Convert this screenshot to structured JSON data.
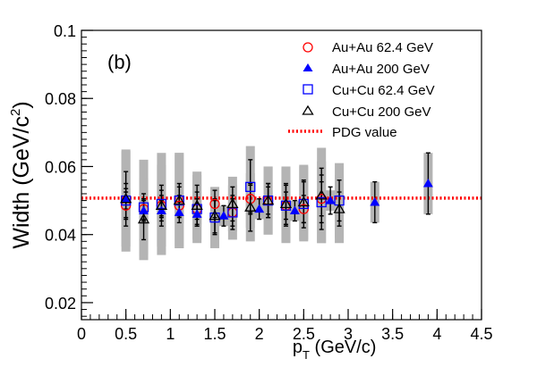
{
  "chart_data": {
    "type": "scatter",
    "panel_label": "(b)",
    "xlabel": {
      "main": "p",
      "sub": "T",
      "rest": " (GeV/c)"
    },
    "ylabel": {
      "main": "Width (GeV/c",
      "sup": "2",
      "rest": ")"
    },
    "xlim": [
      0,
      4.5
    ],
    "ylim": [
      0.015,
      0.1
    ],
    "x_ticks": [
      0,
      0.5,
      1,
      1.5,
      2,
      2.5,
      3,
      3.5,
      4,
      4.5
    ],
    "x_tick_labels": [
      "0",
      "0.5",
      "1",
      "1.5",
      "2",
      "2.5",
      "3",
      "3.5",
      "4",
      "4.5"
    ],
    "y_ticks": [
      0.02,
      0.04,
      0.06,
      0.08,
      0.1
    ],
    "y_tick_labels": [
      "0.02",
      "0.04",
      "0.06",
      "0.08",
      "0.1"
    ],
    "reference_line": {
      "name": "PDG value",
      "y": 0.0507,
      "color": "#ff0000",
      "style": "dotted"
    },
    "legend_position": "top-right",
    "series": [
      {
        "name": "Au+Au 62.4 GeV",
        "marker": "open-circle",
        "color": "#ff0000",
        "points": [
          {
            "x": 0.5,
            "y": 0.0485,
            "err": 0.004,
            "sys": 0.003
          },
          {
            "x": 0.7,
            "y": 0.0475,
            "err": 0.003,
            "sys": 0.003
          },
          {
            "x": 0.9,
            "y": 0.0485,
            "err": 0.003,
            "sys": 0.003
          },
          {
            "x": 1.1,
            "y": 0.0485,
            "err": 0.003,
            "sys": 0.003
          },
          {
            "x": 1.3,
            "y": 0.0475,
            "err": 0.003,
            "sys": 0.003
          },
          {
            "x": 1.5,
            "y": 0.049,
            "err": 0.004,
            "sys": 0.003
          },
          {
            "x": 1.7,
            "y": 0.0465,
            "err": 0.004,
            "sys": 0.003
          },
          {
            "x": 1.9,
            "y": 0.0505,
            "err": 0.004,
            "sys": 0.003
          },
          {
            "x": 2.1,
            "y": 0.05,
            "err": 0.004,
            "sys": 0.003
          },
          {
            "x": 2.3,
            "y": 0.0485,
            "err": 0.004,
            "sys": 0.003
          },
          {
            "x": 2.5,
            "y": 0.0475,
            "err": 0.004,
            "sys": 0.003
          },
          {
            "x": 2.7,
            "y": 0.0505,
            "err": 0.005,
            "sys": 0.003
          }
        ]
      },
      {
        "name": "Au+Au 200 GeV",
        "marker": "filled-triangle",
        "color": "#0000ff",
        "points": [
          {
            "x": 0.5,
            "y": 0.0505,
            "err": 0.003,
            "sys": 0.003
          },
          {
            "x": 0.7,
            "y": 0.047,
            "err": 0.003,
            "sys": 0.003
          },
          {
            "x": 0.9,
            "y": 0.047,
            "err": 0.003,
            "sys": 0.003
          },
          {
            "x": 1.1,
            "y": 0.0465,
            "err": 0.003,
            "sys": 0.003
          },
          {
            "x": 1.3,
            "y": 0.046,
            "err": 0.003,
            "sys": 0.003
          },
          {
            "x": 1.6,
            "y": 0.0455,
            "err": 0.003,
            "sys": 0.003
          },
          {
            "x": 2.0,
            "y": 0.0475,
            "err": 0.003,
            "sys": 0.003
          },
          {
            "x": 2.4,
            "y": 0.047,
            "err": 0.003,
            "sys": 0.003
          },
          {
            "x": 2.8,
            "y": 0.05,
            "err": 0.004,
            "sys": 0.003
          },
          {
            "x": 3.3,
            "y": 0.0495,
            "err": 0.006,
            "sys": 0.006
          },
          {
            "x": 3.9,
            "y": 0.055,
            "err": 0.009,
            "sys": 0.009
          }
        ]
      },
      {
        "name": "Cu+Cu 62.4 GeV",
        "marker": "open-square",
        "color": "#0000ff",
        "points": [
          {
            "x": 0.5,
            "y": 0.05,
            "err": 0.005,
            "sys": 0.015
          },
          {
            "x": 0.7,
            "y": 0.048,
            "err": 0.004,
            "sys": 0.014
          },
          {
            "x": 0.9,
            "y": 0.049,
            "err": 0.004,
            "sys": 0.015
          },
          {
            "x": 1.1,
            "y": 0.05,
            "err": 0.004,
            "sys": 0.014
          },
          {
            "x": 1.3,
            "y": 0.0475,
            "err": 0.005,
            "sys": 0.01
          },
          {
            "x": 1.5,
            "y": 0.045,
            "err": 0.005,
            "sys": 0.009
          },
          {
            "x": 1.7,
            "y": 0.0465,
            "err": 0.005,
            "sys": 0.008
          },
          {
            "x": 1.9,
            "y": 0.054,
            "err": 0.008,
            "sys": 0.012
          },
          {
            "x": 2.1,
            "y": 0.05,
            "err": 0.005,
            "sys": 0.01
          },
          {
            "x": 2.3,
            "y": 0.0485,
            "err": 0.006,
            "sys": 0.011
          },
          {
            "x": 2.5,
            "y": 0.049,
            "err": 0.007,
            "sys": 0.011
          },
          {
            "x": 2.7,
            "y": 0.0495,
            "err": 0.008,
            "sys": 0.012
          },
          {
            "x": 2.9,
            "y": 0.05,
            "err": 0.006,
            "sys": 0.011
          }
        ]
      },
      {
        "name": "Cu+Cu 200 GeV",
        "marker": "open-triangle",
        "color": "#000000",
        "points": [
          {
            "x": 0.5,
            "y": 0.0505,
            "err": 0.008,
            "sys": 0.014
          },
          {
            "x": 0.7,
            "y": 0.0445,
            "err": 0.006,
            "sys": 0.012
          },
          {
            "x": 0.9,
            "y": 0.0485,
            "err": 0.006,
            "sys": 0.012
          },
          {
            "x": 1.1,
            "y": 0.05,
            "err": 0.005,
            "sys": 0.014
          },
          {
            "x": 1.3,
            "y": 0.0485,
            "err": 0.006,
            "sys": 0.01
          },
          {
            "x": 1.5,
            "y": 0.0455,
            "err": 0.005,
            "sys": 0.008
          },
          {
            "x": 1.7,
            "y": 0.049,
            "err": 0.005,
            "sys": 0.008
          },
          {
            "x": 1.9,
            "y": 0.048,
            "err": 0.007,
            "sys": 0.01
          },
          {
            "x": 2.1,
            "y": 0.05,
            "err": 0.005,
            "sys": 0.01
          },
          {
            "x": 2.3,
            "y": 0.049,
            "err": 0.006,
            "sys": 0.011
          },
          {
            "x": 2.5,
            "y": 0.0495,
            "err": 0.006,
            "sys": 0.011
          },
          {
            "x": 2.7,
            "y": 0.0515,
            "err": 0.008,
            "sys": 0.014
          },
          {
            "x": 2.9,
            "y": 0.0475,
            "err": 0.005,
            "sys": 0.01
          }
        ]
      }
    ],
    "legend": [
      {
        "label": "Au+Au 62.4 GeV",
        "marker": "open-circle",
        "color": "#ff0000"
      },
      {
        "label": "Au+Au 200 GeV",
        "marker": "filled-triangle",
        "color": "#0000ff"
      },
      {
        "label": "Cu+Cu 62.4 GeV",
        "marker": "open-square",
        "color": "#0000ff"
      },
      {
        "label": "Cu+Cu 200 GeV",
        "marker": "open-triangle",
        "color": "#000000"
      },
      {
        "label": "PDG value",
        "marker": "dotted-line",
        "color": "#ff0000"
      }
    ],
    "sys_band_color": "#b4b4b4",
    "grid": false
  }
}
